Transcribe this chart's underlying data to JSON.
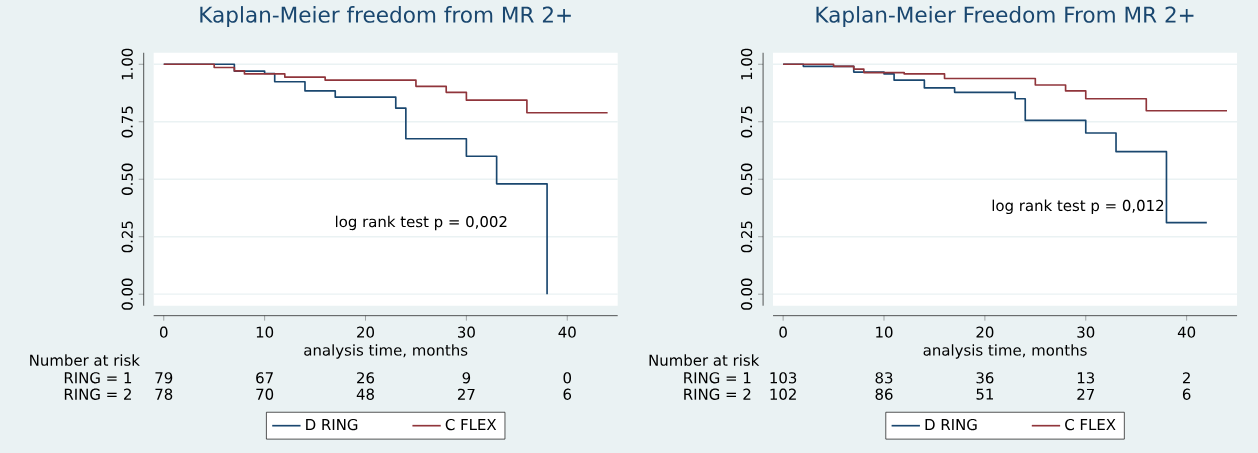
{
  "chart_data": [
    {
      "type": "step",
      "title": "Kaplan-Meier freedom from MR 2+",
      "xlabel": "analysis time, months",
      "series": [
        {
          "name": "D RING",
          "color": "#1a476f",
          "x": [
            0,
            7,
            10,
            11,
            14,
            17,
            23,
            24,
            30,
            33,
            38
          ],
          "values": [
            1.0,
            0.97,
            0.96,
            0.924,
            0.884,
            0.857,
            0.809,
            0.676,
            0.6,
            0.48,
            0.0
          ]
        },
        {
          "name": "C FLEX",
          "color": "#90353b",
          "x": [
            0,
            5,
            7,
            8,
            12,
            16,
            25,
            28,
            30,
            36,
            44
          ],
          "values": [
            1.0,
            0.986,
            0.971,
            0.958,
            0.944,
            0.931,
            0.904,
            0.878,
            0.844,
            0.789,
            0.789
          ]
        }
      ],
      "xlim": [
        -1,
        45
      ],
      "ylim": [
        -0.05,
        1.05
      ],
      "xticks": [
        0,
        10,
        20,
        30,
        40
      ],
      "yticks": [
        {
          "value": 0,
          "label": "0.00"
        },
        {
          "value": 0.25,
          "label": "0.25"
        },
        {
          "value": 0.5,
          "label": "0.50"
        },
        {
          "value": 0.75,
          "label": "0.75"
        },
        {
          "value": 1,
          "label": "1.00"
        }
      ],
      "grid": "y",
      "legend": "bottom",
      "annotations": [
        "Number at risk",
        "RING = 1",
        "79",
        "67",
        "26",
        "9",
        "0",
        "RING = 2",
        "78",
        "70",
        "48",
        "27",
        "6",
        "log rank test p = 0,002"
      ]
    },
    {
      "type": "step",
      "title": "Kaplan-Meier Freedom From MR 2+",
      "xlabel": "analysis time, months",
      "series": [
        {
          "name": "D RING",
          "color": "#1a476f",
          "x": [
            0,
            2,
            7,
            10,
            11,
            14,
            17,
            23,
            24,
            30,
            33,
            38,
            42
          ],
          "values": [
            1.0,
            0.991,
            0.966,
            0.958,
            0.931,
            0.897,
            0.878,
            0.85,
            0.756,
            0.701,
            0.62,
            0.311,
            0.311
          ]
        },
        {
          "name": "C FLEX",
          "color": "#90353b",
          "x": [
            0,
            5,
            7,
            8,
            12,
            16,
            25,
            28,
            30,
            36,
            44
          ],
          "values": [
            1.0,
            0.991,
            0.979,
            0.964,
            0.958,
            0.938,
            0.91,
            0.884,
            0.85,
            0.798,
            0.798
          ]
        }
      ],
      "xlim": [
        -1,
        45
      ],
      "ylim": [
        -0.05,
        1.05
      ],
      "xticks": [
        0,
        10,
        20,
        30,
        40
      ],
      "yticks": [
        {
          "value": 0,
          "label": "0.00"
        },
        {
          "value": 0.25,
          "label": "0.25"
        },
        {
          "value": 0.5,
          "label": "0.50"
        },
        {
          "value": 0.75,
          "label": "0.75"
        },
        {
          "value": 1,
          "label": "1.00"
        }
      ],
      "grid": "y",
      "legend": "bottom",
      "annotations": [
        "Number at risk",
        "RING = 1",
        "103",
        "83",
        "36",
        "13",
        "2",
        "RING = 2",
        "102",
        "86",
        "51",
        "27",
        "6",
        "log rank test p = 0,012"
      ]
    }
  ]
}
